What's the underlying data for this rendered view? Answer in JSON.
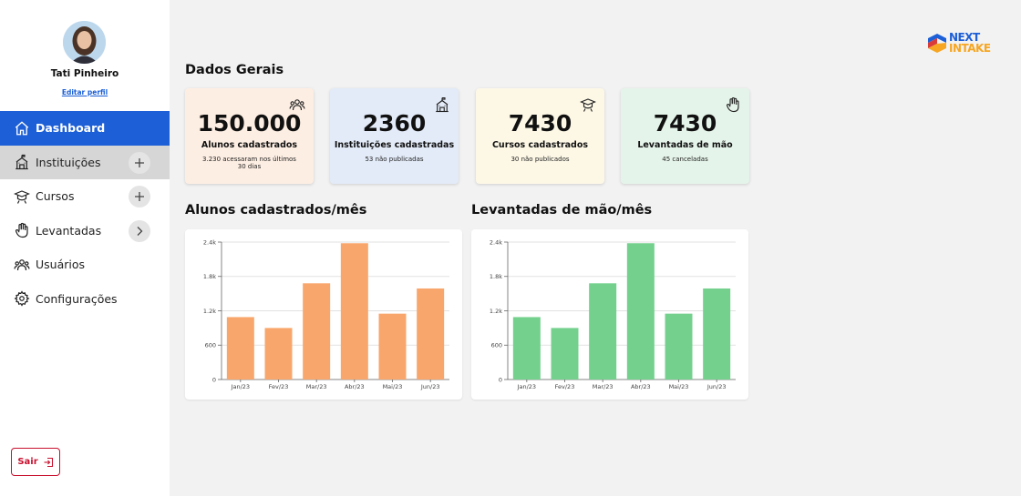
{
  "user": {
    "name": "Tati Pinheiro",
    "edit_label": "Editar perfil"
  },
  "nav": [
    {
      "label": "Dashboard",
      "icon": "home-icon",
      "state": "active"
    },
    {
      "label": "Instituições",
      "icon": "institution-icon",
      "state": "hover",
      "action": "plus-icon"
    },
    {
      "label": "Cursos",
      "icon": "graduation-icon",
      "action": "plus-icon"
    },
    {
      "label": "Levantadas",
      "icon": "hand-icon",
      "action": "chevron-right-icon"
    },
    {
      "label": "Usuários",
      "icon": "users-icon"
    },
    {
      "label": "Configurações",
      "icon": "gear-icon"
    }
  ],
  "logout_label": "Sair",
  "logo": {
    "line1": "NEXT",
    "line2": "INTAKE"
  },
  "overview_title": "Dados Gerais",
  "cards": [
    {
      "value": "150.000",
      "label": "Alunos cadastrados",
      "sub": "3.230 acessaram nos últimos 30 dias",
      "icon": "users-icon",
      "bg": "#fdeee3"
    },
    {
      "value": "2360",
      "label": "Instituições cadastradas",
      "sub": "53 não publicadas",
      "icon": "institution-icon",
      "bg": "#e3ebf8"
    },
    {
      "value": "7430",
      "label": "Cursos cadastrados",
      "sub": "30 não publicados",
      "icon": "graduation-icon",
      "bg": "#fdf8e6"
    },
    {
      "value": "7430",
      "label": "Levantadas de mão",
      "sub": "45 canceladas",
      "icon": "hand-icon",
      "bg": "#e5f4ea"
    }
  ],
  "charts_titles": [
    "Alunos cadastrados/mês",
    "Levantadas de mão/mês"
  ],
  "chart_data": [
    {
      "type": "bar",
      "title": "Alunos cadastrados/mês",
      "categories": [
        "Jan/23",
        "Fev/23",
        "Mar/23",
        "Abr/23",
        "Mai/23",
        "Jun/23"
      ],
      "values": [
        1090,
        900,
        1680,
        2380,
        1150,
        1590
      ],
      "yticks": [
        "0",
        "600",
        "1.2k",
        "1.8k",
        "2.4k"
      ],
      "ylim": [
        0,
        2400
      ],
      "color": "#f9a66c",
      "grid": true
    },
    {
      "type": "bar",
      "title": "Levantadas de mão/mês",
      "categories": [
        "Jan/23",
        "Fev/23",
        "Mar/23",
        "Abr/23",
        "Mai/23",
        "Jun/23"
      ],
      "values": [
        1090,
        900,
        1680,
        2380,
        1150,
        1590
      ],
      "yticks": [
        "0",
        "600",
        "1.2k",
        "1.8k",
        "2.4k"
      ],
      "ylim": [
        0,
        2400
      ],
      "color": "#74d18d",
      "grid": true
    }
  ]
}
